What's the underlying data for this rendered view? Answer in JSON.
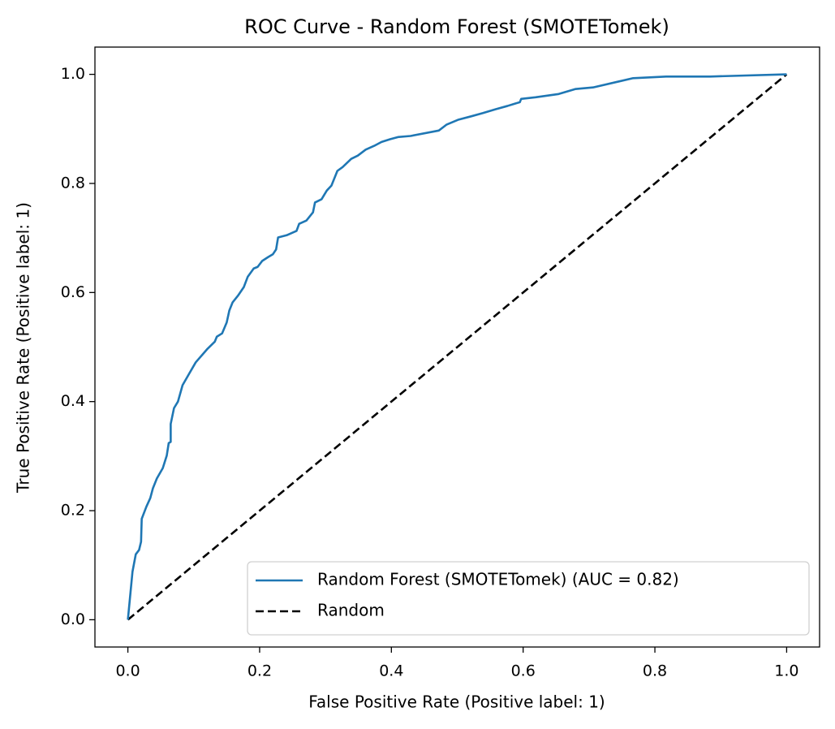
{
  "chart_data": {
    "type": "line",
    "title": "ROC Curve - Random Forest (SMOTETomek)",
    "xlabel": "False Positive Rate (Positive label: 1)",
    "ylabel": "True Positive Rate (Positive label: 1)",
    "xlim": [
      -0.05,
      1.05
    ],
    "ylim": [
      -0.05,
      1.05
    ],
    "xticks": [
      {
        "value": 0,
        "label": "0.0"
      },
      0.2,
      0.4,
      0.6,
      0.8,
      {
        "value": 1,
        "label": "1.0"
      }
    ],
    "yticks": [
      {
        "value": 0,
        "label": "0.0"
      },
      0.2,
      0.4,
      0.6,
      0.8,
      {
        "value": 1,
        "label": "1.0"
      }
    ],
    "legend": "lower right",
    "series": [
      {
        "name": "Random Forest (SMOTETomek) (AUC = 0.82)",
        "color": "#1f77b4",
        "linestyle": "solid",
        "x": [
          0,
          0.007,
          0.012,
          0.017,
          0.02,
          0.021,
          0.028,
          0.034,
          0.038,
          0.044,
          0.053,
          0.059,
          0.062,
          0.065,
          0.065,
          0.07,
          0.076,
          0.083,
          0.092,
          0.103,
          0.121,
          0.132,
          0.135,
          0.143,
          0.15,
          0.154,
          0.159,
          0.167,
          0.176,
          0.182,
          0.191,
          0.197,
          0.204,
          0.213,
          0.22,
          0.225,
          0.228,
          0.241,
          0.256,
          0.26,
          0.271,
          0.281,
          0.284,
          0.294,
          0.302,
          0.309,
          0.318,
          0.326,
          0.339,
          0.349,
          0.361,
          0.374,
          0.385,
          0.398,
          0.41,
          0.429,
          0.472,
          0.484,
          0.502,
          0.521,
          0.539,
          0.558,
          0.576,
          0.595,
          0.597,
          0.619,
          0.654,
          0.679,
          0.706,
          0.767,
          0.817,
          0.884,
          1
        ],
        "values": [
          0,
          0.088,
          0.12,
          0.128,
          0.143,
          0.185,
          0.207,
          0.223,
          0.241,
          0.259,
          0.278,
          0.301,
          0.324,
          0.326,
          0.359,
          0.388,
          0.4,
          0.43,
          0.449,
          0.472,
          0.497,
          0.51,
          0.519,
          0.525,
          0.545,
          0.567,
          0.582,
          0.594,
          0.61,
          0.629,
          0.644,
          0.647,
          0.658,
          0.665,
          0.67,
          0.679,
          0.701,
          0.705,
          0.713,
          0.726,
          0.732,
          0.747,
          0.765,
          0.771,
          0.787,
          0.796,
          0.823,
          0.83,
          0.845,
          0.851,
          0.862,
          0.869,
          0.876,
          0.881,
          0.885,
          0.887,
          0.897,
          0.908,
          0.917,
          0.923,
          0.929,
          0.936,
          0.942,
          0.949,
          0.955,
          0.958,
          0.964,
          0.973,
          0.976,
          0.993,
          0.996,
          0.996,
          1
        ]
      },
      {
        "name": "Random",
        "color": "#000000",
        "linestyle": "dashed",
        "x": [
          0,
          1
        ],
        "values": [
          0,
          1
        ]
      }
    ]
  }
}
